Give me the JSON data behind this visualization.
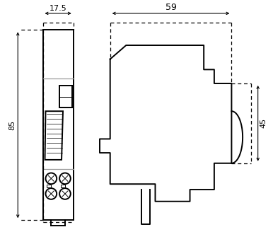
{
  "bg_color": "#ffffff",
  "line_color": "#000000",
  "gray_color": "#999999",
  "dim_color": "#000000",
  "fig_width": 3.86,
  "fig_height": 3.45,
  "dpi": 100,
  "dim_17_5": "17.5",
  "dim_59": "59",
  "dim_85": "85",
  "dim_45": "45"
}
